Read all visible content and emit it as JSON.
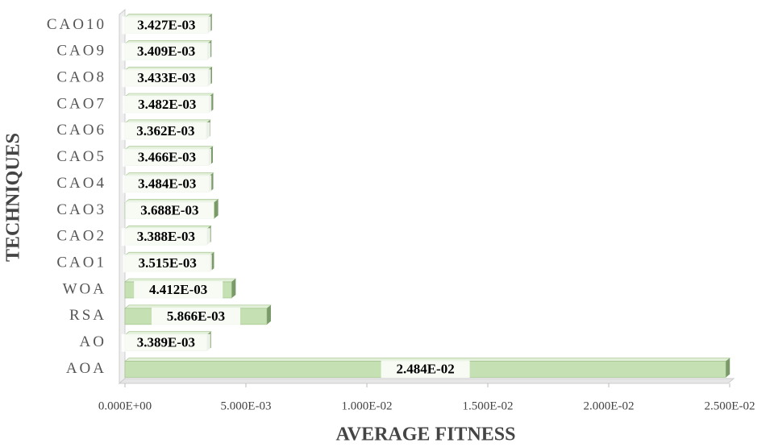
{
  "chart_data": {
    "type": "bar",
    "orientation": "horizontal",
    "x_label": "AVERAGE FITNESS",
    "y_label": "TECHNIQUES",
    "categories": [
      "CAO10",
      "CAO9",
      "CAO8",
      "CAO7",
      "CAO6",
      "CAO5",
      "CAO4",
      "CAO3",
      "CAO2",
      "CAO1",
      "WOA",
      "RSA",
      "AO",
      "AOA"
    ],
    "values": [
      0.003427,
      0.003409,
      0.003433,
      0.003482,
      0.003362,
      0.003466,
      0.003484,
      0.003688,
      0.003388,
      0.003515,
      0.004412,
      0.005866,
      0.003389,
      0.02484
    ],
    "value_labels": [
      "3.427E-03",
      "3.409E-03",
      "3.433E-03",
      "3.482E-03",
      "3.362E-03",
      "3.466E-03",
      "3.484E-03",
      "3.688E-03",
      "3.388E-03",
      "3.515E-03",
      "4.412E-03",
      "5.866E-03",
      "3.389E-03",
      "2.484E-02"
    ],
    "color": "#c5e0b3",
    "xlim": [
      0,
      0.025
    ],
    "xticks": [
      {
        "value": 0,
        "label": "0.000E+00"
      },
      {
        "value": 0.005,
        "label": "5.000E-03"
      },
      {
        "value": 0.01,
        "label": "1.000E-02"
      },
      {
        "value": 0.015,
        "label": "1.500E-02"
      },
      {
        "value": 0.02,
        "label": "2.000E-02"
      },
      {
        "value": 0.025,
        "label": "2.500E-02"
      }
    ]
  }
}
